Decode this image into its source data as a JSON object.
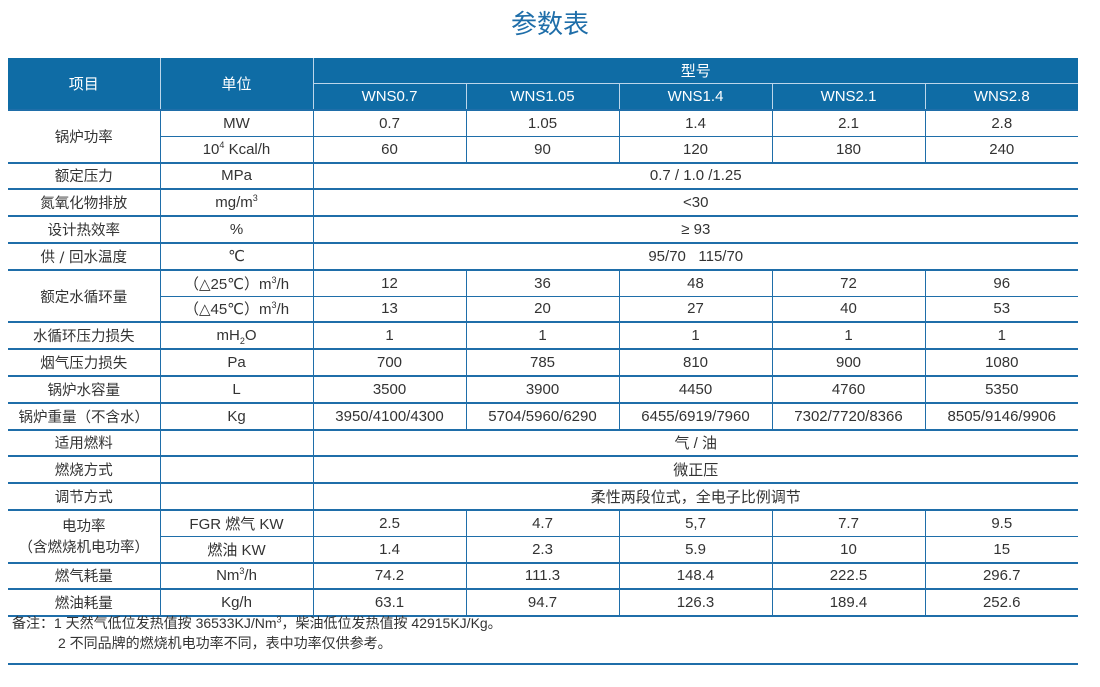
{
  "title": "参数表",
  "header": {
    "item": "项目",
    "unit": "单位",
    "model": "型号",
    "models": [
      "WNS0.7",
      "WNS1.05",
      "WNS1.4",
      "WNS2.1",
      "WNS2.8"
    ]
  },
  "groups": [
    {
      "item": "锅炉功率",
      "rows": [
        {
          "unit": [
            "MW"
          ],
          "values": [
            "0.7",
            "1.05",
            "1.4",
            "2.1",
            "2.8"
          ]
        },
        {
          "unit": [
            "10",
            {
              "sup": "4"
            },
            " Kcal/h"
          ],
          "values": [
            "60",
            "90",
            "120",
            "180",
            "240"
          ]
        }
      ]
    },
    {
      "item": "额定压力",
      "rows": [
        {
          "unit": [
            "MPa"
          ],
          "span": "0.7 / 1.0 /1.25"
        }
      ]
    },
    {
      "item": "氮氧化物排放",
      "rows": [
        {
          "unit": [
            "mg/m",
            {
              "sup": "3"
            }
          ],
          "span": "<30"
        }
      ]
    },
    {
      "item": "设计热效率",
      "rows": [
        {
          "unit": [
            "%"
          ],
          "span": "≥ 93"
        }
      ]
    },
    {
      "item": "供 / 回水温度",
      "rows": [
        {
          "unit": [
            "℃"
          ],
          "span": "95/70   115/70"
        }
      ]
    },
    {
      "item": "额定水循环量",
      "rows": [
        {
          "unit": [
            "（△25℃）m",
            {
              "sup": "3"
            },
            "/h"
          ],
          "values": [
            "12",
            "36",
            "48",
            "72",
            "96"
          ]
        },
        {
          "unit": [
            "（△45℃）m",
            {
              "sup": "3"
            },
            "/h"
          ],
          "values": [
            "13",
            "20",
            "27",
            "40",
            "53"
          ]
        }
      ]
    },
    {
      "item": "水循环压力损失",
      "rows": [
        {
          "unit": [
            "mH",
            {
              "sub": "2"
            },
            "O"
          ],
          "values": [
            "1",
            "1",
            "1",
            "1",
            "1"
          ]
        }
      ]
    },
    {
      "item": "烟气压力损失",
      "rows": [
        {
          "unit": [
            "Pa"
          ],
          "values": [
            "700",
            "785",
            "810",
            "900",
            "1080"
          ]
        }
      ]
    },
    {
      "item": "锅炉水容量",
      "rows": [
        {
          "unit": [
            "L"
          ],
          "values": [
            "3500",
            "3900",
            "4450",
            "4760",
            "5350"
          ]
        }
      ]
    },
    {
      "item": "锅炉重量（不含水）",
      "rows": [
        {
          "unit": [
            "Kg"
          ],
          "values": [
            "3950/4100/4300",
            "5704/5960/6290",
            "6455/6919/7960",
            "7302/7720/8366",
            "8505/9146/9906"
          ]
        }
      ]
    },
    {
      "item": "适用燃料",
      "rows": [
        {
          "unit": [
            ""
          ],
          "span": "气 / 油"
        }
      ]
    },
    {
      "item": "燃烧方式",
      "rows": [
        {
          "unit": [
            ""
          ],
          "span": "微正压"
        }
      ]
    },
    {
      "item": "调节方式",
      "rows": [
        {
          "unit": [
            ""
          ],
          "span": "柔性两段位式，全电子比例调节"
        }
      ]
    },
    {
      "item": "电功率",
      "item2": "（含燃烧机电功率）",
      "rows": [
        {
          "unit": [
            "FGR 燃气 KW"
          ],
          "values": [
            "2.5",
            "4.7",
            "5,7",
            "7.7",
            "9.5"
          ]
        },
        {
          "unit": [
            "燃油 KW"
          ],
          "values": [
            "1.4",
            "2.3",
            "5.9",
            "10",
            "15"
          ]
        }
      ]
    },
    {
      "item": "燃气耗量",
      "rows": [
        {
          "unit": [
            "Nm",
            {
              "sup": "3"
            },
            "/h"
          ],
          "values": [
            "74.2",
            "111.3",
            "148.4",
            "222.5",
            "296.7"
          ]
        }
      ]
    },
    {
      "item": "燃油耗量",
      "rows": [
        {
          "unit": [
            "Kg/h"
          ],
          "values": [
            "63.1",
            "94.7",
            "126.3",
            "189.4",
            "252.6"
          ]
        }
      ]
    }
  ],
  "notes": {
    "label": "备注：",
    "n1_pre": "1  天然气低位发热值按 36533KJ/Nm",
    "n1_sup": "3",
    "n1_post": "，柴油低位发热值按 42915KJ/Kg。",
    "n2": "2  不同品牌的燃烧机电功率不同，表中功率仅供参考。"
  },
  "colors": {
    "accent": "#0f6ca5",
    "line": "#1f6ea9"
  }
}
